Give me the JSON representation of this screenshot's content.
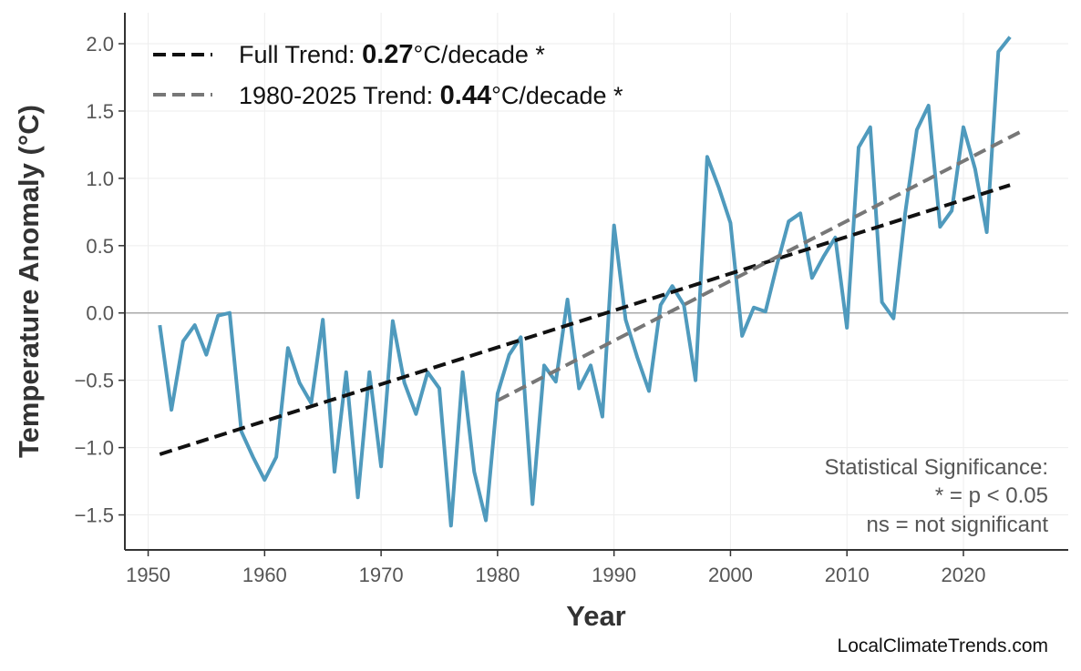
{
  "chart_data": {
    "type": "line",
    "title": "",
    "xlabel": "Year",
    "ylabel": "Temperature Anomaly (°C)",
    "xlim": [
      1948,
      2029
    ],
    "ylim": [
      -1.76,
      2.23
    ],
    "grid": true,
    "x_ticks": [
      "1950",
      "1960",
      "1970",
      "1980",
      "1990",
      "2000",
      "2010",
      "2020"
    ],
    "y_ticks": [
      "2.0",
      "1.5",
      "1.0",
      "0.5",
      "0.0",
      "−0.5",
      "−1.0",
      "−1.5"
    ],
    "series": [
      {
        "color": "#4f9abd",
        "x": [
          1951,
          1952,
          1953,
          1954,
          1955,
          1956,
          1957,
          1958,
          1959,
          1960,
          1961,
          1962,
          1963,
          1964,
          1965,
          1966,
          1967,
          1968,
          1969,
          1970,
          1971,
          1972,
          1973,
          1974,
          1975,
          1976,
          1977,
          1978,
          1979,
          1980,
          1981,
          1982,
          1983,
          1984,
          1985,
          1986,
          1987,
          1988,
          1989,
          1990,
          1991,
          1992,
          1993,
          1994,
          1995,
          1996,
          1997,
          1998,
          1999,
          2000,
          2001,
          2002,
          2003,
          2004,
          2005,
          2006,
          2007,
          2008,
          2009,
          2010,
          2011,
          2012,
          2013,
          2014,
          2015,
          2016,
          2017,
          2018,
          2019,
          2020,
          2021,
          2022,
          2023,
          2024
        ],
        "y": [
          -0.09,
          -0.72,
          -0.21,
          -0.09,
          -0.31,
          -0.02,
          0.0,
          -0.88,
          -1.07,
          -1.24,
          -1.07,
          -0.26,
          -0.52,
          -0.67,
          -0.05,
          -1.18,
          -0.44,
          -1.37,
          -0.44,
          -1.14,
          -0.06,
          -0.52,
          -0.75,
          -0.44,
          -0.56,
          -1.58,
          -0.44,
          -1.18,
          -1.54,
          -0.6,
          -0.31,
          -0.18,
          -1.42,
          -0.39,
          -0.51,
          0.1,
          -0.56,
          -0.39,
          -0.77,
          0.65,
          -0.05,
          -0.33,
          -0.58,
          0.06,
          0.2,
          0.06,
          -0.5,
          1.16,
          0.93,
          0.67,
          -0.17,
          0.04,
          0.01,
          0.36,
          0.68,
          0.74,
          0.26,
          0.42,
          0.56,
          -0.11,
          1.23,
          1.38,
          0.08,
          -0.04,
          0.74,
          1.36,
          1.54,
          0.64,
          0.76,
          1.38,
          1.07,
          0.6,
          1.94,
          2.05
        ]
      },
      {
        "name": "Full Trend",
        "style": "dashed",
        "color": "#111111",
        "x": [
          1951,
          2024
        ],
        "y": [
          -1.05,
          0.95
        ]
      },
      {
        "name": "1980-2025 Trend",
        "style": "dashed",
        "color": "#777777",
        "x": [
          1980,
          2025
        ],
        "y": [
          -0.65,
          1.35
        ]
      }
    ],
    "legend": {
      "placement": "top-left",
      "items": [
        {
          "prefix": "Full Trend: ",
          "value": "0.27",
          "suffix": "°C/decade *"
        },
        {
          "prefix": "1980-2025 Trend: ",
          "value": "0.44",
          "suffix": "°C/decade *"
        }
      ]
    },
    "annotation": [
      "Statistical Significance:",
      "* = p < 0.05",
      "ns = not significant"
    ],
    "watermark": "LocalClimateTrends.com"
  }
}
